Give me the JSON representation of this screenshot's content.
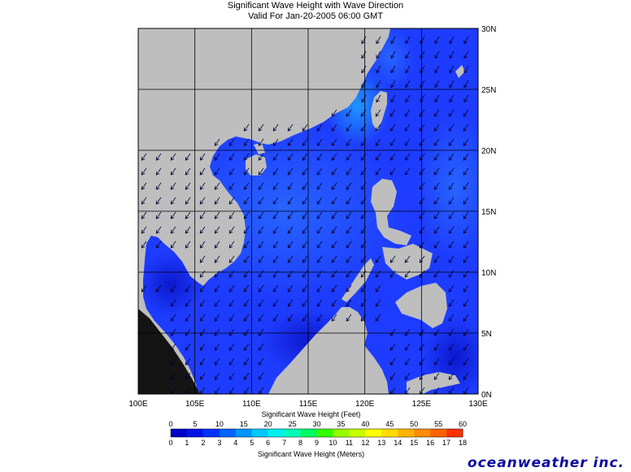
{
  "title": "Significant Wave Height with Wave Direction",
  "subtitle": "Valid For Jan-20-2005 06:00 GMT",
  "lon_labels": [
    "100E",
    "105E",
    "110E",
    "115E",
    "120E",
    "125E",
    "130E"
  ],
  "lat_labels": [
    "0N",
    "5N",
    "10N",
    "15N",
    "20N",
    "25N",
    "30N"
  ],
  "extent": {
    "lon": [
      100,
      130
    ],
    "lat": [
      0,
      30
    ]
  },
  "legend": {
    "feet_title": "Significant Wave Height (Feet)",
    "feet_ticks": [
      "0",
      "5",
      "10",
      "15",
      "20",
      "25",
      "30",
      "35",
      "40",
      "45",
      "50",
      "55",
      "60"
    ],
    "meters_title": "Significant Wave Height (Meters)",
    "meters_ticks": [
      "0",
      "1",
      "2",
      "3",
      "4",
      "5",
      "6",
      "7",
      "8",
      "9",
      "10",
      "11",
      "12",
      "13",
      "14",
      "15",
      "16",
      "17",
      "18"
    ],
    "colors": [
      "#0000c8",
      "#0014e6",
      "#0032ff",
      "#0064ff",
      "#0096ff",
      "#00c8ff",
      "#00f0f0",
      "#00ffb4",
      "#00ff64",
      "#32ff00",
      "#96ff00",
      "#c8ff00",
      "#ffff00",
      "#ffdc00",
      "#ffb400",
      "#ff8c00",
      "#ff6400",
      "#ff3200"
    ]
  },
  "colors": {
    "land": "#bebebe",
    "ocean": "#1e3cff",
    "grid": "#000000",
    "brand": "#0a0aa0"
  },
  "brand": "oceanweather inc."
}
